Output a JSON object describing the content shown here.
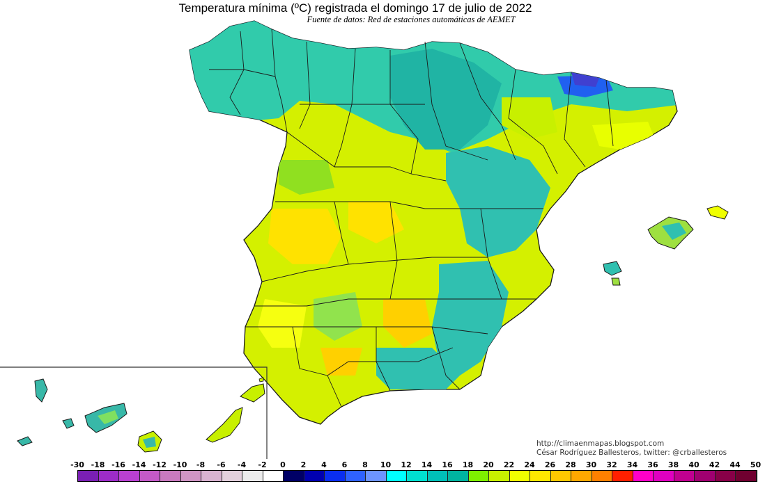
{
  "title": "Temperatura mínima (ºC) registrada el domingo 17 de julio de 2022",
  "subtitle": "Fuente de datos: Red de estaciones automáticas de AEMET",
  "credits": {
    "blog": "http://climaenmapas.blogspot.com",
    "author": "César Rodríguez Ballesteros, twitter: @crballesteros"
  },
  "legend": {
    "labels": [
      "-30",
      "-18",
      "-16",
      "-14",
      "-12",
      "-10",
      "-8",
      "-6",
      "-4",
      "-2",
      "0",
      "2",
      "4",
      "6",
      "8",
      "10",
      "12",
      "14",
      "16",
      "18",
      "20",
      "22",
      "24",
      "26",
      "28",
      "30",
      "32",
      "34",
      "36",
      "38",
      "40",
      "42",
      "44",
      "50"
    ],
    "colors": [
      "#7a1fb4",
      "#9d2cc8",
      "#b940d2",
      "#c45ac8",
      "#c97abf",
      "#cf95c4",
      "#d8b3d0",
      "#e3d0dc",
      "#ececec",
      "#ffffff",
      "#000066",
      "#0000b0",
      "#0a2ef0",
      "#2f62ff",
      "#6d94ff",
      "#00ffff",
      "#00e0d0",
      "#00c0b8",
      "#00b4a0",
      "#7ef000",
      "#c8f000",
      "#f0ff00",
      "#ffe800",
      "#ffc800",
      "#ffa800",
      "#ff8000",
      "#ff2000",
      "#ff00c8",
      "#e000c0",
      "#c00090",
      "#a00070",
      "#880048",
      "#700030"
    ]
  },
  "palette": {
    "cool": "#1fd0c0",
    "teal": "#38b8a8",
    "mild": "#c8f000",
    "warm": "#ffe800",
    "hot": "#ffb020",
    "cold": "#4060ff",
    "border": "#1a1a1a"
  }
}
